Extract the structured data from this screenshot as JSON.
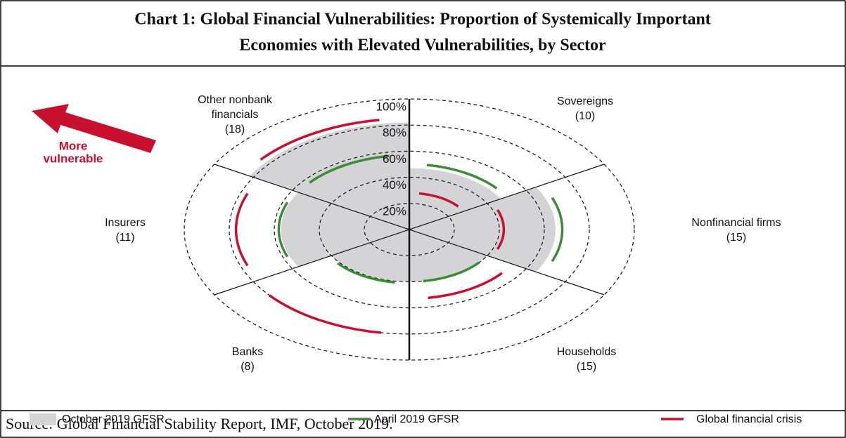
{
  "chart_data": {
    "type": "polar",
    "title": [
      "Chart 1: Global Financial Vulnerabilities: Proportion of Systemically Important",
      "Economies with Elevated Vulnerabilities, by Sector"
    ],
    "categories": [
      [
        "Sovereigns",
        "(10)"
      ],
      [
        "Nonfinancial firms",
        "(15)"
      ],
      [
        "Households",
        "(15)"
      ],
      [
        "Banks",
        "(8)"
      ],
      [
        "Insurers",
        "(11)"
      ],
      [
        "Other nonbank",
        "financials",
        "(18)"
      ]
    ],
    "series": [
      {
        "name": "October 2019 GFSR",
        "color": "#d4d4d6",
        "style": "fill",
        "values": [
          47,
          65,
          40,
          40,
          57,
          82
        ]
      },
      {
        "name": "April 2019 GFSR",
        "color": "#3d8b37",
        "style": "arc",
        "values": [
          50,
          68,
          40,
          41,
          58,
          57
        ]
      },
      {
        "name": "Global financial crisis",
        "color": "#c8102e",
        "style": "arc",
        "values": [
          28,
          42,
          53,
          80,
          77,
          85
        ]
      }
    ],
    "rlim": [
      0,
      100
    ],
    "rticks": [
      {
        "value": 20,
        "label": "20%"
      },
      {
        "value": 40,
        "label": "40%"
      },
      {
        "value": 60,
        "label": "60%"
      },
      {
        "value": 80,
        "label": "80%"
      },
      {
        "value": 100,
        "label": "100%"
      }
    ],
    "annotation": [
      "More",
      "vulnerable"
    ],
    "source": "Source: Global Financial Stability Report, IMF, October 2019."
  }
}
